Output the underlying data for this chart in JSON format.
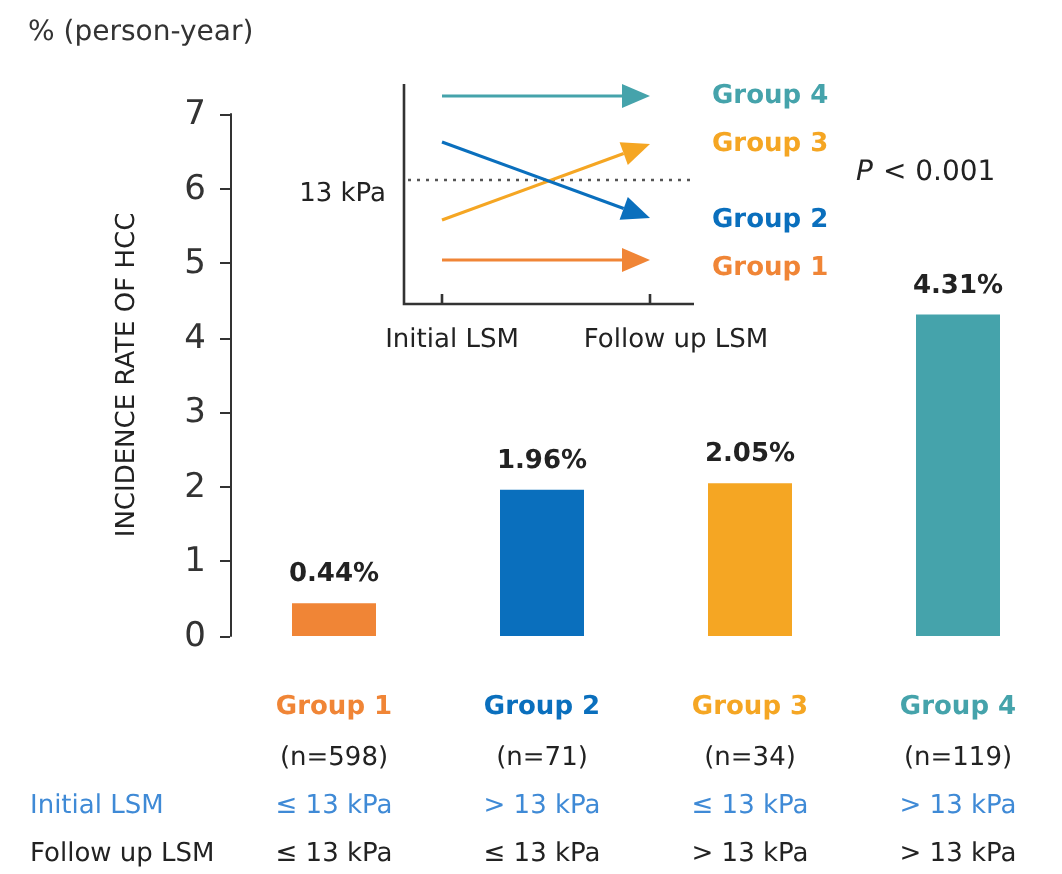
{
  "chart_data": {
    "type": "bar",
    "ylabel": "INCIDENCE RATE OF HCC",
    "categories": [
      "Group 1",
      "Group 2",
      "Group 3",
      "Group 4"
    ],
    "values": [
      0.44,
      1.96,
      2.05,
      4.31
    ],
    "colors": [
      "#f08536",
      "#0a6fbd",
      "#f5a623",
      "#45a3ab"
    ],
    "value_labels": [
      "0.44%",
      "1.96%",
      "2.05%",
      "4.31%"
    ],
    "ylim": [
      0,
      7
    ],
    "yticks": [
      0,
      1,
      2,
      3,
      4,
      5,
      6,
      7
    ],
    "grid": false,
    "annotations": [
      "% (person-year)",
      "P < 0.001",
      "(n=598)",
      "(n=71)",
      "(n=34)",
      "(n=119)",
      "Initial LSM",
      "≤ 13 kPa",
      "> 13 kPa",
      "≤ 13 kPa",
      "> 13 kPa",
      "Follow up LSM",
      "≤ 13 kPa",
      "≤ 13 kPa",
      "> 13 kPa",
      "> 13 kPa",
      "13 kPa",
      "Initial LSM",
      "Follow up LSM",
      "Group 4",
      "Group 3",
      "Group 2",
      "Group 1"
    ]
  }
}
